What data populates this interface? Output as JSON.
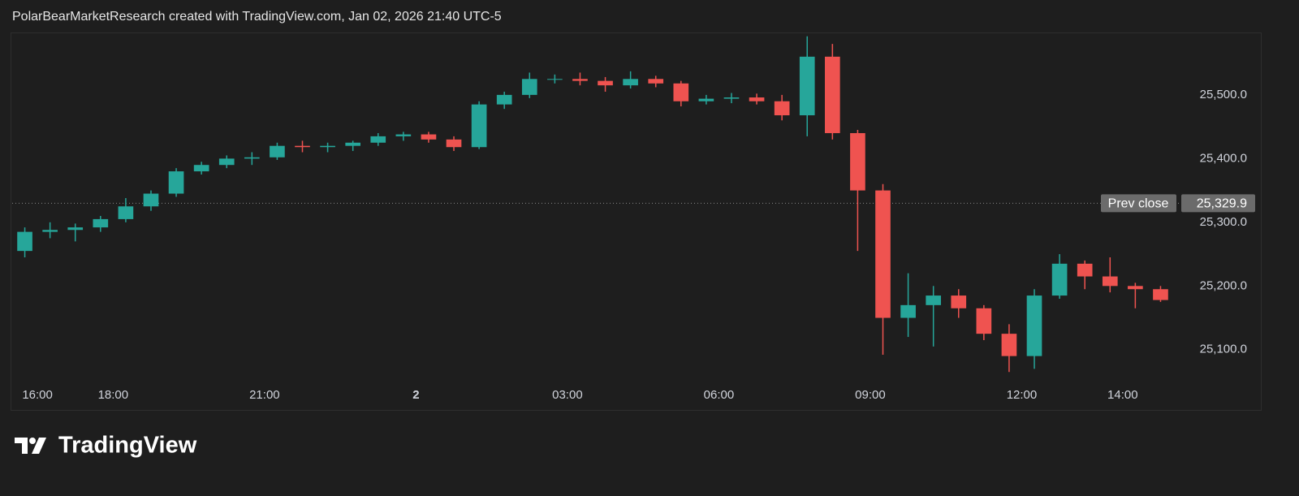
{
  "header": {
    "title": "PolarBearMarketResearch created with TradingView.com, Jan 02, 2026 21:40 UTC-5"
  },
  "chart_data": {
    "type": "candlestick",
    "categories": [
      null,
      "16:00",
      null,
      null,
      "18:00",
      null,
      null,
      null,
      null,
      null,
      "21:00",
      null,
      null,
      null,
      null,
      null,
      "2",
      null,
      null,
      null,
      null,
      null,
      "03:00",
      null,
      null,
      null,
      null,
      null,
      "06:00",
      null,
      null,
      null,
      null,
      null,
      "09:00",
      null,
      null,
      null,
      null,
      null,
      "12:00",
      null,
      null,
      null,
      "14:00",
      null
    ],
    "series": [
      {
        "up_color": "#26a69a",
        "down_color": "#ef5350",
        "open": [
          25255,
          25285,
          25288,
          25292,
          25305,
          25325,
          25345,
          25380,
          25390,
          25400,
          25402,
          25420,
          25418,
          25420,
          25425,
          25435,
          25438,
          25430,
          25418,
          25485,
          25500,
          25525,
          25525,
          25522,
          25515,
          25525,
          25518,
          25490,
          25494,
          25496,
          25490,
          25468,
          25560,
          25440,
          25350,
          25150,
          25170,
          25185,
          25165,
          25125,
          25090,
          25185,
          25235,
          25215,
          25200,
          25195
        ],
        "high": [
          25292,
          25300,
          25298,
          25310,
          25338,
          25350,
          25385,
          25395,
          25405,
          25410,
          25425,
          25428,
          25425,
          25428,
          25440,
          25442,
          25442,
          25435,
          25490,
          25505,
          25535,
          25532,
          25535,
          25528,
          25537,
          25530,
          25522,
          25500,
          25503,
          25502,
          25500,
          25592,
          25580,
          25445,
          25360,
          25220,
          25200,
          25195,
          25170,
          25140,
          25195,
          25250,
          25240,
          25245,
          25205,
          25200
        ],
        "low": [
          25245,
          25275,
          25270,
          25285,
          25300,
          25318,
          25340,
          25375,
          25385,
          25390,
          25398,
          25410,
          25410,
          25412,
          25420,
          25428,
          25425,
          25412,
          25415,
          25478,
          25495,
          25518,
          25515,
          25505,
          25510,
          25512,
          25482,
          25485,
          25487,
          25485,
          25460,
          25435,
          25430,
          25255,
          25092,
          25120,
          25105,
          25150,
          25115,
          25065,
          25070,
          25180,
          25195,
          25190,
          25165,
          25175
        ],
        "close": [
          25285,
          25288,
          25292,
          25305,
          25325,
          25345,
          25380,
          25390,
          25400,
          25402,
          25420,
          25418,
          25420,
          25425,
          25435,
          25438,
          25430,
          25418,
          25485,
          25500,
          25525,
          25525,
          25522,
          25515,
          25525,
          25518,
          25490,
          25494,
          25496,
          25490,
          25468,
          25560,
          25440,
          25350,
          25150,
          25170,
          25185,
          25165,
          25125,
          25090,
          25185,
          25235,
          25215,
          25200,
          25195,
          25178
        ]
      }
    ],
    "ylim": [
      25050,
      25598
    ],
    "yticks": [
      {
        "value": 25100,
        "label": "25,100.0"
      },
      {
        "value": 25200,
        "label": "25,200.0"
      },
      {
        "value": 25300,
        "label": "25,300.0"
      },
      {
        "value": 25400,
        "label": "25,400.0"
      },
      {
        "value": 25500,
        "label": "25,500.0"
      }
    ],
    "prev_close": {
      "label": "Prev close",
      "value": 25329.9,
      "value_label": "25,329.9"
    }
  },
  "footer": {
    "brand": "TradingView"
  }
}
